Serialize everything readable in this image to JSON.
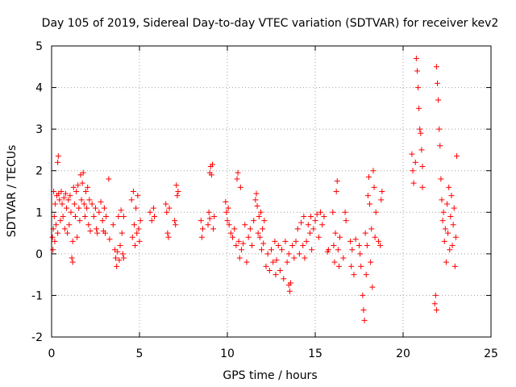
{
  "chart_data": {
    "type": "scatter",
    "title": "Day 105 of 2019, Sidereal Day-to-day VTEC variation (SDTVAR) for receiver kev2",
    "xlabel": "GPS time / hours",
    "ylabel": "SDTVAR / TECUs",
    "xlim": [
      0,
      25
    ],
    "ylim": [
      -2,
      5
    ],
    "xticks": [
      0,
      5,
      10,
      15,
      20,
      25
    ],
    "yticks": [
      -2,
      -1,
      0,
      1,
      2,
      3,
      4,
      5
    ],
    "xtick_labels": [
      "0",
      "5",
      "10",
      "15",
      "20",
      "25"
    ],
    "ytick_labels": [
      "-2",
      "-1",
      "0",
      "1",
      "2",
      "3",
      "4",
      "5"
    ],
    "grid": true,
    "marker": "+",
    "color": "#ff0000",
    "series": [
      {
        "name": "SDTVAR",
        "points": [
          [
            0.05,
            0.4
          ],
          [
            0.08,
            0.1
          ],
          [
            0.1,
            0.6
          ],
          [
            0.12,
            1.5
          ],
          [
            0.15,
            0.9
          ],
          [
            0.18,
            0.3
          ],
          [
            0.2,
            1.2
          ],
          [
            0.25,
            0.7
          ],
          [
            0.3,
            1.4
          ],
          [
            0.35,
            0.5
          ],
          [
            0.35,
            2.2
          ],
          [
            0.38,
            2.35
          ],
          [
            0.4,
            1.45
          ],
          [
            0.45,
            1.3
          ],
          [
            0.5,
            0.8
          ],
          [
            0.55,
            1.5
          ],
          [
            0.6,
            1.2
          ],
          [
            0.65,
            0.9
          ],
          [
            0.7,
            1.35
          ],
          [
            0.75,
            0.6
          ],
          [
            0.8,
            1.45
          ],
          [
            0.85,
            1.1
          ],
          [
            0.9,
            0.5
          ],
          [
            0.95,
            1.3
          ],
          [
            1.0,
            0.7
          ],
          [
            1.05,
            1.4
          ],
          [
            1.1,
            1.0
          ],
          [
            1.15,
            -0.1
          ],
          [
            1.2,
            -0.2
          ],
          [
            1.2,
            0.3
          ],
          [
            1.25,
            1.6
          ],
          [
            1.3,
            1.2
          ],
          [
            1.35,
            0.9
          ],
          [
            1.4,
            1.5
          ],
          [
            1.45,
            0.4
          ],
          [
            1.5,
            1.65
          ],
          [
            1.55,
            1.1
          ],
          [
            1.6,
            0.8
          ],
          [
            1.65,
            1.9
          ],
          [
            1.7,
            1.3
          ],
          [
            1.75,
            1.7
          ],
          [
            1.8,
            1.95
          ],
          [
            1.85,
            1.2
          ],
          [
            1.9,
            0.9
          ],
          [
            1.95,
            1.5
          ],
          [
            2.0,
            1.1
          ],
          [
            2.05,
            1.6
          ],
          [
            2.1,
            0.7
          ],
          [
            2.15,
            1.3
          ],
          [
            2.2,
            0.55
          ],
          [
            2.3,
            1.2
          ],
          [
            2.4,
            0.9
          ],
          [
            2.5,
            1.1
          ],
          [
            2.55,
            0.6
          ],
          [
            2.6,
            0.5
          ],
          [
            2.7,
            1.0
          ],
          [
            2.8,
            1.25
          ],
          [
            2.9,
            0.8
          ],
          [
            2.95,
            0.55
          ],
          [
            3.0,
            1.1
          ],
          [
            3.05,
            0.5
          ],
          [
            3.1,
            0.9
          ],
          [
            3.25,
            1.8
          ],
          [
            3.3,
            0.35
          ],
          [
            3.5,
            0.7
          ],
          [
            3.6,
            0.1
          ],
          [
            3.65,
            -0.1
          ],
          [
            3.7,
            -0.3
          ],
          [
            3.75,
            0.05
          ],
          [
            3.8,
            0.9
          ],
          [
            3.85,
            -0.15
          ],
          [
            3.9,
            0.2
          ],
          [
            3.95,
            1.05
          ],
          [
            4.0,
            0.5
          ],
          [
            4.05,
            0.0
          ],
          [
            4.1,
            0.9
          ],
          [
            4.1,
            -0.1
          ],
          [
            4.55,
            1.3
          ],
          [
            4.6,
            0.4
          ],
          [
            4.65,
            1.5
          ],
          [
            4.7,
            0.7
          ],
          [
            4.75,
            0.2
          ],
          [
            4.8,
            1.1
          ],
          [
            4.85,
            0.5
          ],
          [
            4.9,
            1.4
          ],
          [
            4.95,
            0.6
          ],
          [
            5.0,
            0.3
          ],
          [
            5.05,
            0.8
          ],
          [
            5.6,
            1.0
          ],
          [
            5.7,
            0.8
          ],
          [
            5.8,
            1.1
          ],
          [
            5.85,
            0.9
          ],
          [
            6.5,
            1.2
          ],
          [
            6.55,
            1.0
          ],
          [
            6.6,
            0.5
          ],
          [
            6.65,
            0.4
          ],
          [
            6.7,
            1.1
          ],
          [
            7.0,
            0.8
          ],
          [
            7.05,
            0.7
          ],
          [
            7.1,
            1.65
          ],
          [
            7.15,
            1.4
          ],
          [
            7.2,
            1.5
          ],
          [
            8.5,
            0.8
          ],
          [
            8.55,
            0.4
          ],
          [
            8.6,
            0.6
          ],
          [
            8.9,
            0.7
          ],
          [
            8.95,
            1.0
          ],
          [
            9.0,
            0.85
          ],
          [
            9.0,
            1.95
          ],
          [
            9.05,
            2.1
          ],
          [
            9.1,
            1.9
          ],
          [
            9.15,
            2.15
          ],
          [
            9.2,
            0.6
          ],
          [
            9.25,
            0.9
          ],
          [
            9.9,
            1.25
          ],
          [
            9.95,
            1.0
          ],
          [
            10.0,
            0.8
          ],
          [
            10.05,
            1.1
          ],
          [
            10.1,
            0.7
          ],
          [
            10.2,
            0.5
          ],
          [
            10.3,
            0.4
          ],
          [
            10.4,
            0.6
          ],
          [
            10.5,
            0.2
          ],
          [
            10.55,
            1.8
          ],
          [
            10.6,
            1.95
          ],
          [
            10.65,
            0.3
          ],
          [
            10.7,
            -0.1
          ],
          [
            10.75,
            1.6
          ],
          [
            10.8,
            0.1
          ],
          [
            10.9,
            0.25
          ],
          [
            11.0,
            0.7
          ],
          [
            11.1,
            -0.2
          ],
          [
            11.2,
            0.4
          ],
          [
            11.3,
            0.6
          ],
          [
            11.4,
            0.2
          ],
          [
            11.5,
            0.8
          ],
          [
            11.6,
            1.3
          ],
          [
            11.65,
            1.45
          ],
          [
            11.7,
            1.15
          ],
          [
            11.75,
            0.5
          ],
          [
            11.8,
            0.9
          ],
          [
            11.85,
            0.4
          ],
          [
            11.9,
            1.0
          ],
          [
            11.95,
            0.1
          ],
          [
            12.0,
            0.6
          ],
          [
            12.05,
            0.25
          ],
          [
            12.1,
            0.8
          ],
          [
            12.2,
            -0.3
          ],
          [
            12.3,
            0.0
          ],
          [
            12.4,
            -0.4
          ],
          [
            12.5,
            0.1
          ],
          [
            12.6,
            -0.2
          ],
          [
            12.7,
            0.3
          ],
          [
            12.75,
            -0.5
          ],
          [
            12.8,
            -0.15
          ],
          [
            12.9,
            0.2
          ],
          [
            13.0,
            -0.4
          ],
          [
            13.1,
            0.1
          ],
          [
            13.2,
            -0.6
          ],
          [
            13.3,
            0.3
          ],
          [
            13.4,
            -0.2
          ],
          [
            13.5,
            0.0
          ],
          [
            13.5,
            -0.75
          ],
          [
            13.55,
            -0.9
          ],
          [
            13.6,
            -0.7
          ],
          [
            13.7,
            0.2
          ],
          [
            13.8,
            -0.1
          ],
          [
            13.9,
            0.3
          ],
          [
            14.0,
            0.6
          ],
          [
            14.1,
            0.0
          ],
          [
            14.2,
            0.75
          ],
          [
            14.3,
            0.2
          ],
          [
            14.35,
            0.9
          ],
          [
            14.4,
            -0.1
          ],
          [
            14.5,
            0.3
          ],
          [
            14.6,
            0.7
          ],
          [
            14.7,
            0.5
          ],
          [
            14.75,
            0.9
          ],
          [
            14.8,
            0.1
          ],
          [
            14.9,
            0.6
          ],
          [
            15.0,
            0.8
          ],
          [
            15.1,
            0.95
          ],
          [
            15.2,
            0.4
          ],
          [
            15.3,
            1.0
          ],
          [
            15.4,
            0.7
          ],
          [
            15.5,
            0.9
          ],
          [
            15.7,
            0.05
          ],
          [
            15.75,
            0.1
          ],
          [
            16.0,
            1.0
          ],
          [
            16.05,
            0.2
          ],
          [
            16.1,
            -0.2
          ],
          [
            16.15,
            0.5
          ],
          [
            16.2,
            1.5
          ],
          [
            16.25,
            1.75
          ],
          [
            16.3,
            0.1
          ],
          [
            16.35,
            -0.3
          ],
          [
            16.4,
            0.4
          ],
          [
            16.6,
            -0.1
          ],
          [
            16.7,
            1.0
          ],
          [
            16.75,
            0.8
          ],
          [
            17.0,
            0.3
          ],
          [
            17.05,
            -0.3
          ],
          [
            17.1,
            0.1
          ],
          [
            17.2,
            -0.5
          ],
          [
            17.3,
            0.35
          ],
          [
            17.5,
            0.2
          ],
          [
            17.55,
            0.0
          ],
          [
            17.6,
            -0.3
          ],
          [
            17.7,
            -1.0
          ],
          [
            17.75,
            -1.35
          ],
          [
            17.8,
            -1.6
          ],
          [
            17.85,
            0.5
          ],
          [
            17.9,
            -0.5
          ],
          [
            17.95,
            0.2
          ],
          [
            18.0,
            1.4
          ],
          [
            18.05,
            1.85
          ],
          [
            18.1,
            1.2
          ],
          [
            18.15,
            -0.2
          ],
          [
            18.2,
            0.6
          ],
          [
            18.25,
            -0.8
          ],
          [
            18.3,
            2.0
          ],
          [
            18.35,
            1.6
          ],
          [
            18.4,
            0.4
          ],
          [
            18.45,
            1.0
          ],
          [
            18.6,
            0.3
          ],
          [
            18.7,
            0.2
          ],
          [
            18.75,
            1.3
          ],
          [
            18.8,
            1.5
          ],
          [
            20.5,
            2.4
          ],
          [
            20.55,
            2.0
          ],
          [
            20.6,
            1.7
          ],
          [
            20.7,
            2.2
          ],
          [
            20.75,
            4.7
          ],
          [
            20.8,
            4.4
          ],
          [
            20.85,
            4.0
          ],
          [
            20.9,
            3.5
          ],
          [
            20.95,
            3.0
          ],
          [
            21.0,
            2.9
          ],
          [
            21.05,
            2.5
          ],
          [
            21.1,
            1.6
          ],
          [
            21.1,
            2.1
          ],
          [
            21.8,
            -1.2
          ],
          [
            21.85,
            -1.0
          ],
          [
            21.9,
            -1.35
          ],
          [
            21.9,
            4.5
          ],
          [
            21.95,
            4.1
          ],
          [
            22.0,
            3.7
          ],
          [
            22.05,
            3.0
          ],
          [
            22.1,
            2.6
          ],
          [
            22.15,
            1.8
          ],
          [
            22.2,
            1.3
          ],
          [
            22.25,
            0.8
          ],
          [
            22.3,
            1.0
          ],
          [
            22.35,
            0.3
          ],
          [
            22.4,
            0.6
          ],
          [
            22.45,
            -0.2
          ],
          [
            22.5,
            1.2
          ],
          [
            22.55,
            0.5
          ],
          [
            22.6,
            1.6
          ],
          [
            22.65,
            0.1
          ],
          [
            22.7,
            0.9
          ],
          [
            22.75,
            1.4
          ],
          [
            22.8,
            0.2
          ],
          [
            22.85,
            0.7
          ],
          [
            22.9,
            1.1
          ],
          [
            22.95,
            -0.3
          ],
          [
            23.0,
            0.4
          ],
          [
            23.05,
            2.35
          ]
        ]
      }
    ]
  }
}
